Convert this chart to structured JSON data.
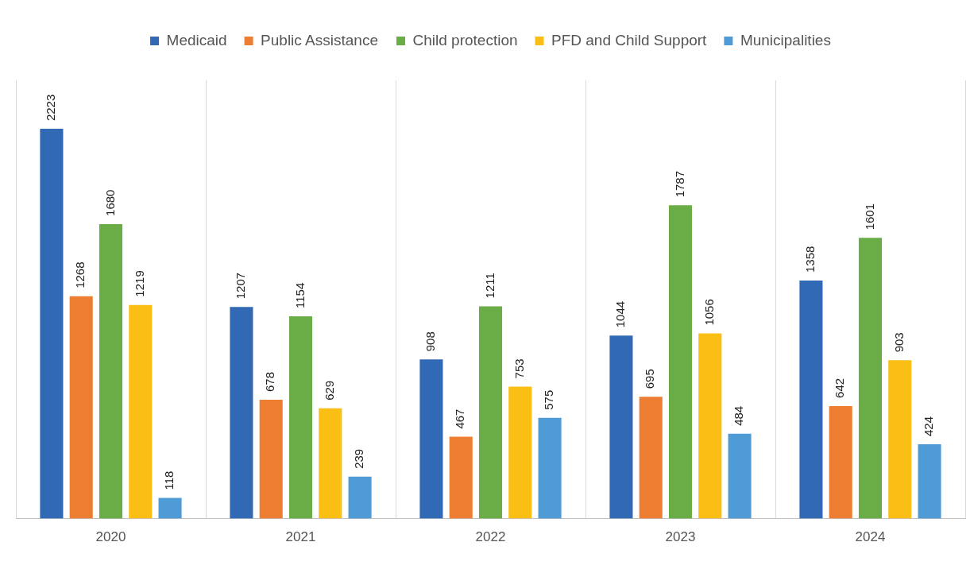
{
  "chart_data": {
    "type": "bar",
    "categories": [
      "2020",
      "2021",
      "2022",
      "2023",
      "2024"
    ],
    "series": [
      {
        "name": "Medicaid",
        "color": "#3169b5",
        "values": [
          2223,
          1207,
          908,
          1044,
          1358
        ]
      },
      {
        "name": "Public Assistance",
        "color": "#ed7d31",
        "values": [
          1268,
          678,
          467,
          695,
          642
        ]
      },
      {
        "name": "Child protection",
        "color": "#6aac45",
        "values": [
          1680,
          1154,
          1211,
          1787,
          1601
        ]
      },
      {
        "name": "PFD and Child Support",
        "color": "#fbbe14",
        "values": [
          1219,
          629,
          753,
          1056,
          903
        ]
      },
      {
        "name": "Municipalities",
        "color": "#4f9bd6",
        "values": [
          118,
          239,
          575,
          484,
          424
        ]
      }
    ],
    "data_labels": true,
    "grid": "x",
    "legend": "top",
    "tick_labels": "x"
  }
}
